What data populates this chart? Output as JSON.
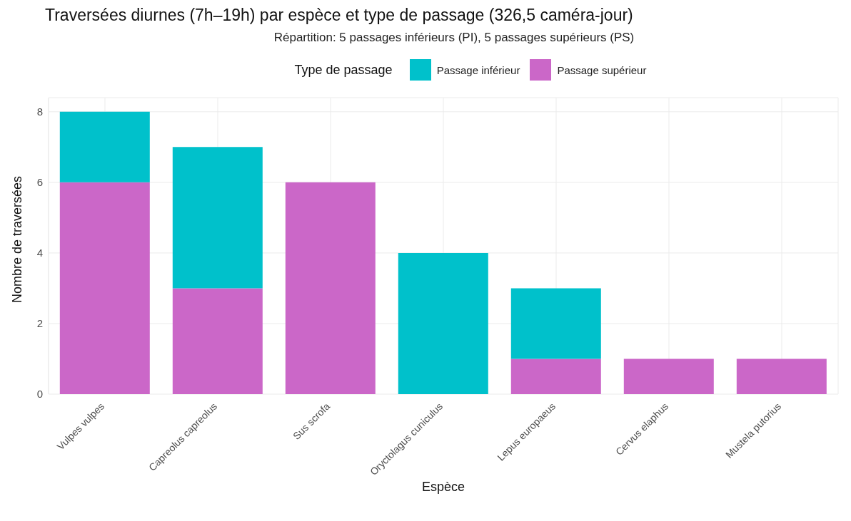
{
  "chart_data": {
    "type": "bar",
    "title": "Traversées diurnes (7h–19h) par espèce et type de passage (326,5 caméra-jour)",
    "subtitle": "Répartition: 5 passages inférieurs (PI), 5 passages supérieurs (PS)",
    "xlabel": "Espèce",
    "ylabel": "Nombre de traversées",
    "legend_title": "Type de passage",
    "categories": [
      "Vulpes vulpes",
      "Capreolus capreolus",
      "Sus scrofa",
      "Oryctolagus cuniculus",
      "Lepus europaeus",
      "Cervus elaphus",
      "Mustela putorius"
    ],
    "series": [
      {
        "name": "Passage supérieur",
        "color": "#cb67c8",
        "values": [
          6,
          3,
          6,
          0,
          1,
          1,
          1
        ]
      },
      {
        "name": "Passage inférieur",
        "color": "#00c1cb",
        "values": [
          2,
          4,
          0,
          4,
          2,
          0,
          0
        ]
      }
    ],
    "stacked": true,
    "ylim": [
      0,
      8.4
    ],
    "yticks": [
      0,
      2,
      4,
      6,
      8
    ],
    "grid": true,
    "legend": "top"
  }
}
